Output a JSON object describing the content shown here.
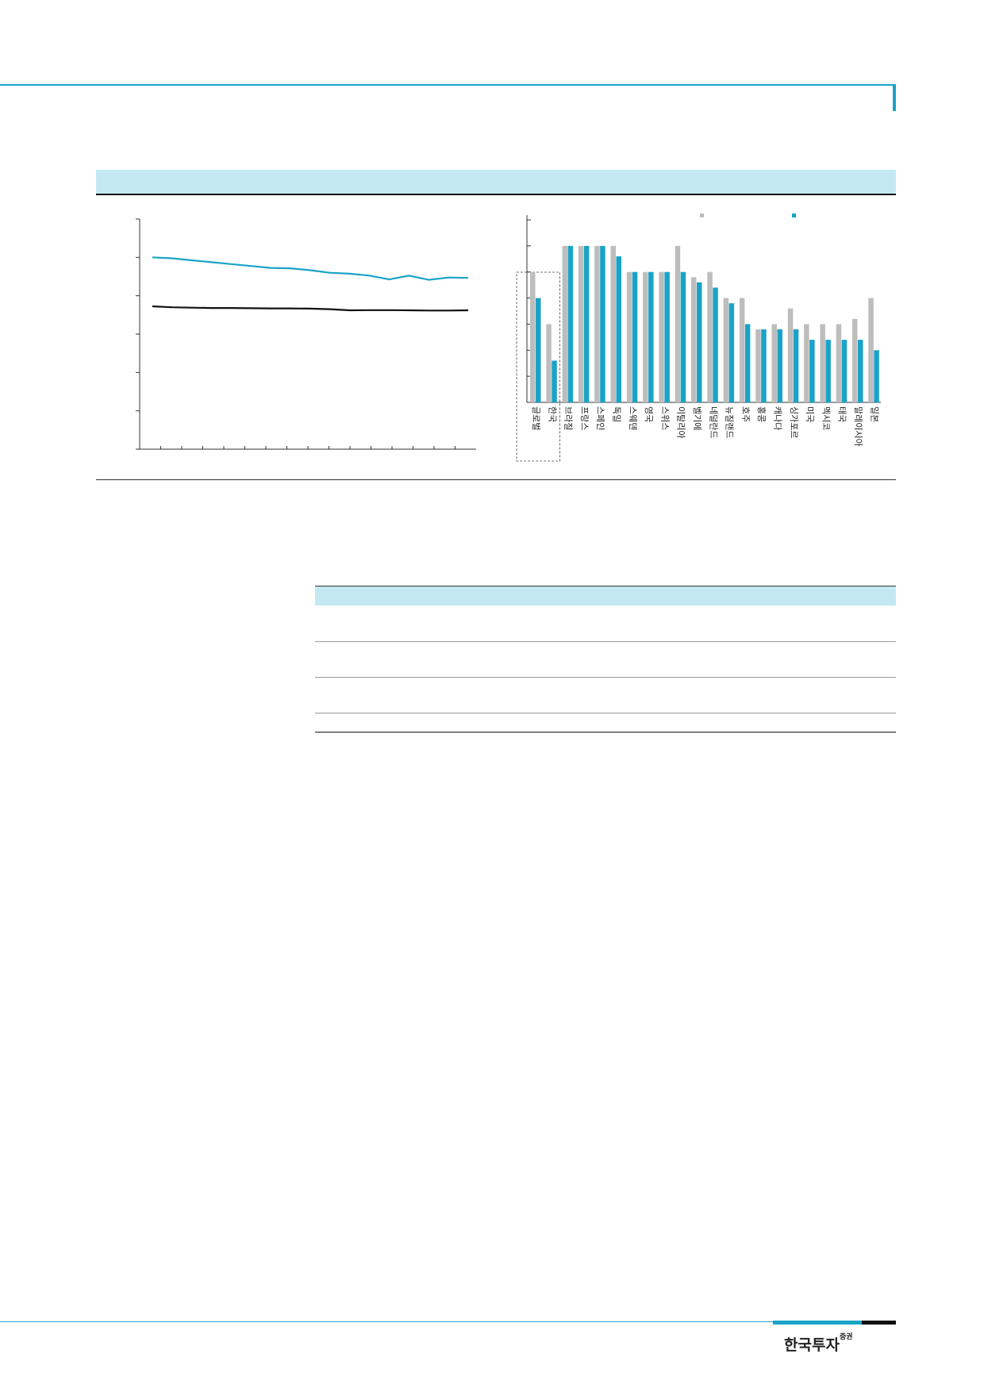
{
  "brand": {
    "name": "한국투자",
    "suffix": "증권"
  },
  "colors": {
    "accent": "#1aa3c8",
    "band": "#c4e8f2",
    "gray_bar": "#bdbdbd",
    "dark_line": "#111111"
  },
  "chart_data": [
    {
      "type": "line",
      "series": [
        {
          "color": "#1aa3c8",
          "values": [
            10.0,
            9.95,
            9.85,
            9.75,
            9.65,
            9.55,
            9.45,
            9.43,
            9.33,
            9.2,
            9.15,
            9.05,
            8.85,
            9.05,
            8.83,
            8.95,
            8.93
          ]
        },
        {
          "color": "#111111",
          "values": [
            7.45,
            7.4,
            7.38,
            7.36,
            7.36,
            7.35,
            7.34,
            7.34,
            7.33,
            7.3,
            7.24,
            7.25,
            7.25,
            7.24,
            7.23,
            7.23,
            7.24
          ]
        }
      ],
      "ylim": [
        0,
        12
      ],
      "yticks": [
        0,
        2,
        4,
        6,
        8,
        10,
        12
      ],
      "xtick_count": 15
    },
    {
      "type": "bar",
      "categories": [
        "글로벌",
        "한국",
        "브라질",
        "프랑스",
        "스페인",
        "독일",
        "스웨덴",
        "영국",
        "스위스",
        "이탈리아",
        "벨기에",
        "네덜란드",
        "뉴질랜드",
        "호주",
        "홍콩",
        "캐나다",
        "싱가포르",
        "미국",
        "멕시코",
        "태국",
        "말레이시아",
        "일본"
      ],
      "series": [
        {
          "color": "#bdbdbd",
          "values": [
            25,
            15,
            30,
            30,
            30,
            30,
            25,
            25,
            25,
            30,
            24,
            25,
            20,
            20,
            14,
            15,
            18,
            15,
            15,
            15,
            16,
            20
          ]
        },
        {
          "color": "#1aa3c8",
          "values": [
            20,
            8,
            30,
            30,
            30,
            28,
            25,
            25,
            25,
            25,
            23,
            22,
            19,
            15,
            14,
            14,
            14,
            12,
            12,
            12,
            12,
            10
          ]
        }
      ],
      "ylim": [
        0,
        35
      ],
      "highlight_categories": [
        "글로벌",
        "한국"
      ]
    }
  ]
}
